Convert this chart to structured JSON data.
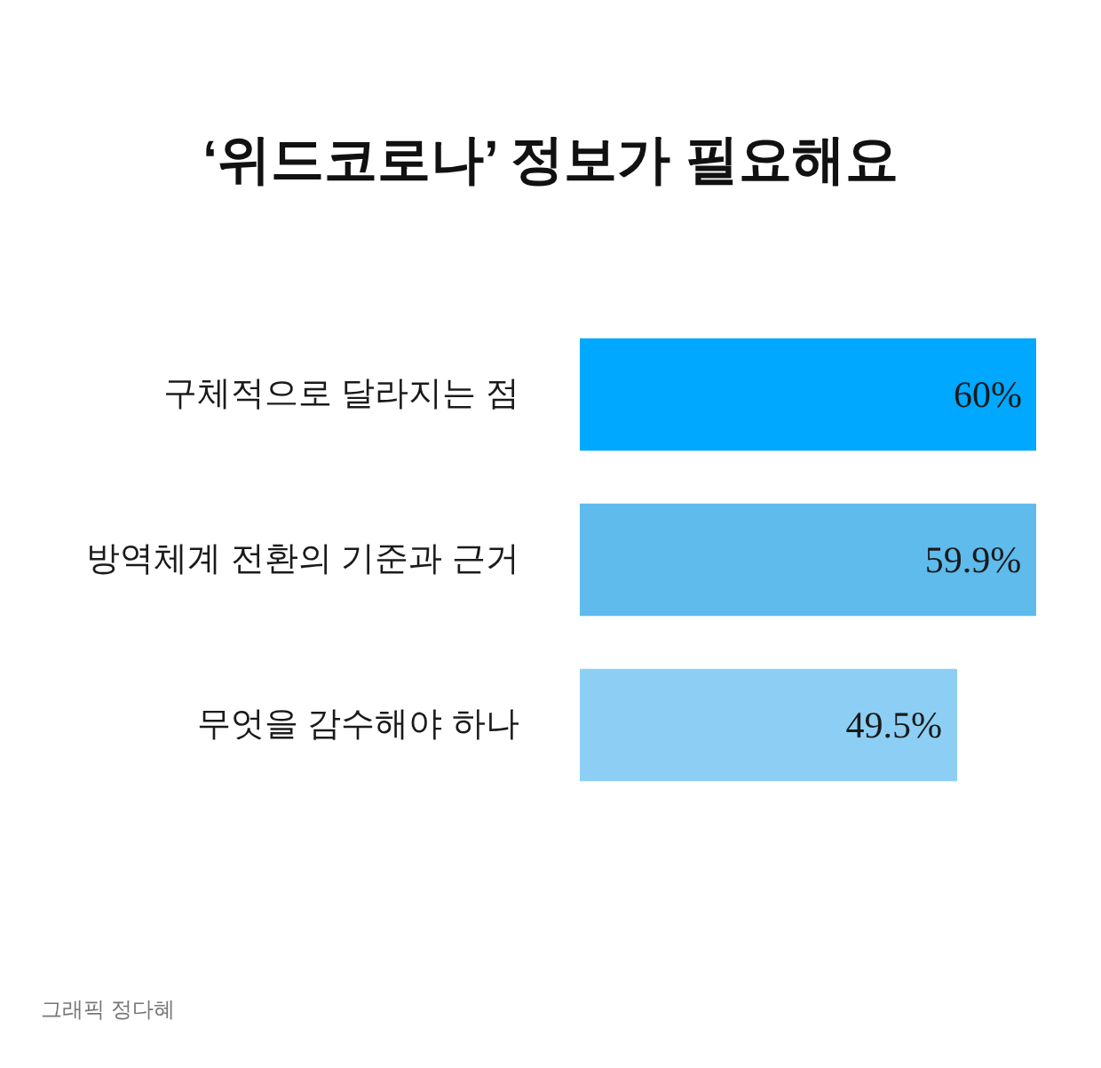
{
  "chart_data": {
    "type": "bar",
    "orientation": "horizontal",
    "title": "‘위드코로나’ 정보가 필요해요",
    "categories": [
      "구체적으로 달라지는 점",
      "방역체계 전환의 기준과 근거",
      "무엇을 감수해야 하나"
    ],
    "values": [
      60,
      59.9,
      49.5
    ],
    "colors": [
      "#00a8ff",
      "#5ebbec",
      "#8dcff4"
    ],
    "value_labels": [
      "60%",
      "59.9%",
      "49.5%"
    ],
    "xlim": [
      0,
      60
    ],
    "tick_labels": "y",
    "grid": false,
    "annotations": [
      "그래픽 정다혜"
    ]
  }
}
